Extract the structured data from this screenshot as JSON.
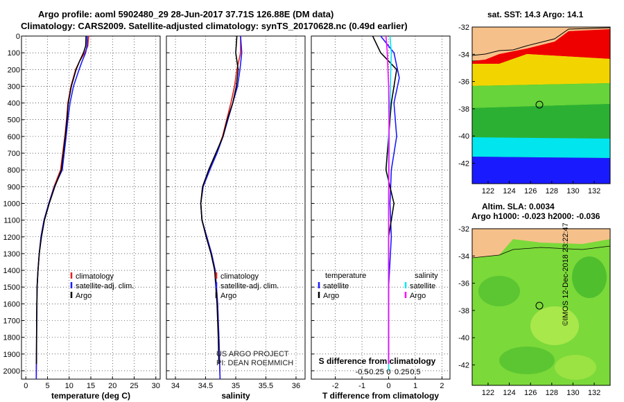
{
  "header": {
    "line1": "Argo profile: aoml 5902480_29 28-Jun-2017 37.71S 126.88E (DM data)",
    "line2": "Climatology: CARS2009. Satellite-adjusted climatology: synTS_20170628.nc (0.49d earlier)"
  },
  "credits": {
    "project": "US ARGO PROJECT",
    "pi": "PI: DEAN ROEMMICH",
    "imos": "©IMOS 12-Dec-2018 23:22:47"
  },
  "colors": {
    "climatology": "#e02020",
    "satellite": "#1a1aff",
    "argo": "#000000",
    "salinity_satellite": "#00e5ee",
    "salinity_argo": "#ff00ff",
    "land": "#f6c08a"
  },
  "chart_data": [
    {
      "type": "line",
      "id": "temperature_profile",
      "xlabel": "temperature (deg C)",
      "ylabel": "",
      "xlim": [
        -1,
        31
      ],
      "ylim": [
        2050,
        0
      ],
      "xticks": [
        0,
        5,
        10,
        15,
        20,
        25,
        30
      ],
      "yticks": [
        0,
        100,
        200,
        300,
        400,
        500,
        600,
        700,
        800,
        900,
        1000,
        1100,
        1200,
        1300,
        1400,
        1500,
        1600,
        1700,
        1800,
        1900,
        2000
      ],
      "grid": true,
      "legend": {
        "position": "lower-center",
        "entries": [
          "climatology",
          "satellite-adj. clim.",
          "Argo"
        ]
      },
      "series": [
        {
          "name": "climatology",
          "color": "#e02020",
          "x": [
            14.5,
            14.3,
            13.6,
            12.4,
            11.5,
            10.4,
            9.7,
            9.4,
            9.0,
            8.0,
            6.5,
            5.3,
            4.2,
            3.5,
            3.1,
            2.8,
            2.6,
            2.5,
            2.45,
            2.4
          ],
          "y": [
            0,
            60,
            100,
            150,
            200,
            300,
            400,
            500,
            600,
            800,
            900,
            1000,
            1100,
            1200,
            1300,
            1400,
            1500,
            1700,
            1900,
            2050
          ]
        },
        {
          "name": "satellite-adj. clim.",
          "color": "#1a1aff",
          "x": [
            14.2,
            14.1,
            13.8,
            13.0,
            12.3,
            11.0,
            10.2,
            9.7,
            9.3,
            8.4,
            6.6,
            5.3,
            4.2,
            3.5,
            3.1,
            2.8,
            2.6,
            2.5,
            2.45,
            2.4
          ],
          "y": [
            0,
            60,
            100,
            150,
            200,
            300,
            400,
            500,
            600,
            800,
            900,
            1000,
            1100,
            1200,
            1300,
            1400,
            1500,
            1700,
            1900,
            2050
          ]
        },
        {
          "name": "Argo",
          "color": "#000000",
          "x": [
            13.9,
            13.8,
            13.3,
            12.4,
            11.6,
            10.5,
            9.8,
            9.5,
            9.1,
            8.2,
            6.7,
            5.4,
            4.3,
            3.6,
            3.1,
            2.8,
            2.6,
            2.5,
            2.45
          ],
          "y": [
            0,
            60,
            100,
            150,
            200,
            300,
            400,
            500,
            600,
            800,
            900,
            1000,
            1100,
            1200,
            1300,
            1400,
            1500,
            1700,
            1960
          ]
        }
      ]
    },
    {
      "type": "line",
      "id": "salinity_profile",
      "xlabel": "salinity",
      "ylabel": "",
      "xlim": [
        33.85,
        36.15
      ],
      "ylim": [
        2050,
        0
      ],
      "xticks": [
        34,
        34.5,
        35,
        35.5,
        36
      ],
      "grid": true,
      "legend": {
        "position": "lower-center",
        "entries": [
          "climatology",
          "satellite-adj. clim.",
          "Argo"
        ]
      },
      "series": [
        {
          "name": "climatology",
          "color": "#e02020",
          "x": [
            35.08,
            35.08,
            35.02,
            34.98,
            34.92,
            34.85,
            34.78,
            34.68,
            34.56,
            34.45,
            34.42,
            34.44,
            34.52,
            34.6,
            34.66,
            34.7,
            34.72,
            34.73,
            34.74
          ],
          "y": [
            0,
            100,
            200,
            300,
            400,
            500,
            600,
            700,
            800,
            900,
            1000,
            1100,
            1200,
            1300,
            1400,
            1600,
            1800,
            1900,
            2050
          ]
        },
        {
          "name": "satellite-adj. clim.",
          "color": "#1a1aff",
          "x": [
            35.08,
            35.1,
            35.07,
            35.03,
            34.95,
            34.87,
            34.79,
            34.69,
            34.57,
            34.46,
            34.42,
            34.44,
            34.52,
            34.6,
            34.66,
            34.7,
            34.72,
            34.73,
            34.74
          ],
          "y": [
            0,
            100,
            200,
            300,
            400,
            500,
            600,
            700,
            800,
            900,
            1000,
            1100,
            1200,
            1300,
            1400,
            1600,
            1800,
            1900,
            2050
          ]
        },
        {
          "name": "Argo",
          "color": "#000000",
          "x": [
            35.02,
            35.0,
            35.04,
            35.01,
            34.95,
            34.86,
            34.79,
            34.67,
            34.55,
            34.45,
            34.42,
            34.44,
            34.51,
            34.59,
            34.65,
            34.69,
            34.71,
            34.72
          ],
          "y": [
            0,
            100,
            200,
            300,
            400,
            500,
            600,
            700,
            800,
            900,
            1000,
            1100,
            1200,
            1300,
            1400,
            1600,
            1800,
            1960
          ]
        }
      ]
    },
    {
      "type": "line",
      "id": "difference_profile",
      "xlabel": "T difference from climatology",
      "xlabel_top": "S difference from climatology",
      "xlim": [
        -2.9,
        2.3
      ],
      "ylim": [
        2050,
        0
      ],
      "xticks": [
        -2,
        -1,
        0,
        1,
        2
      ],
      "xticklabels_top": [
        "-0.5",
        "-0.25",
        "0",
        "0.25",
        "0.5"
      ],
      "grid": true,
      "legend": {
        "position": "lower",
        "groups": [
          {
            "title": "temperature",
            "entries": [
              "satellite",
              "Argo"
            ]
          },
          {
            "title": "salinity",
            "entries": [
              "satellite",
              "Argo"
            ]
          }
        ]
      },
      "series": [
        {
          "name": "temperature satellite",
          "color": "#1a1aff",
          "x": [
            -0.3,
            0.2,
            0.4,
            0.2,
            0.3,
            0.1,
            0.05,
            0.1,
            0.0,
            0.0,
            0.0
          ],
          "y": [
            0,
            100,
            250,
            400,
            600,
            800,
            1000,
            1200,
            1500,
            1800,
            1960
          ]
        },
        {
          "name": "temperature Argo",
          "color": "#000000",
          "x": [
            -0.6,
            -0.3,
            0.3,
            0.1,
            0.0,
            -0.1,
            0.2,
            0.0,
            0.0,
            0.0
          ],
          "y": [
            0,
            100,
            200,
            400,
            600,
            800,
            1000,
            1200,
            1500,
            1960
          ]
        },
        {
          "name": "salinity satellite",
          "color": "#00e5ee",
          "x": [
            0.05,
            0.1,
            0.08,
            0.05,
            0.0,
            0.0,
            0.0,
            0.0,
            0.0
          ],
          "y": [
            0,
            100,
            200,
            400,
            600,
            1000,
            1400,
            1700,
            2000
          ]
        },
        {
          "name": "salinity Argo",
          "color": "#ff00ff",
          "x": [
            -0.1,
            -0.05,
            0.0,
            0.02,
            0.0,
            0.0,
            0.0
          ],
          "y": [
            0,
            100,
            300,
            600,
            1000,
            1500,
            1960
          ]
        }
      ]
    },
    {
      "type": "heatmap",
      "id": "sst_map",
      "title": "sat. SST: 14.3  Argo: 14.1",
      "xlim": [
        120.5,
        133.5
      ],
      "ylim": [
        -43.5,
        -32
      ],
      "xticks": [
        122,
        124,
        126,
        128,
        130,
        132
      ],
      "yticks": [
        -32,
        -34,
        -36,
        -38,
        -40,
        -42
      ],
      "marker": {
        "lon": 126.88,
        "lat": -37.71
      }
    },
    {
      "type": "heatmap",
      "id": "sla_map",
      "title": "Altim. SLA: 0.0034",
      "subtitle": "Argo h1000: -0.023  h2000: -0.036",
      "xlim": [
        120.5,
        133.5
      ],
      "ylim": [
        -43.5,
        -32
      ],
      "xticks": [
        122,
        124,
        126,
        128,
        130,
        132
      ],
      "yticks": [
        -32,
        -34,
        -36,
        -38,
        -40,
        -42
      ],
      "marker": {
        "lon": 126.88,
        "lat": -37.71
      }
    }
  ]
}
